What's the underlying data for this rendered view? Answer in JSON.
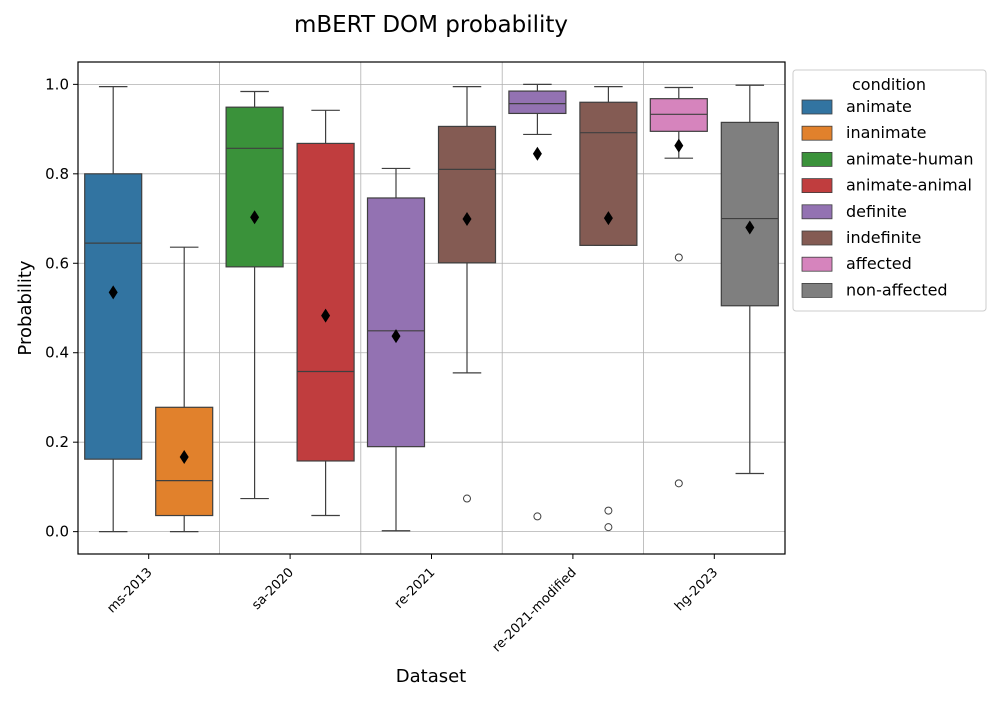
{
  "chart_data": {
    "type": "box",
    "title": "mBERT DOM probability",
    "xlabel": "Dataset",
    "ylabel": "Probability",
    "ylim": [
      -0.05,
      1.05
    ],
    "yticks": [
      "0.0",
      "0.2",
      "0.4",
      "0.6",
      "0.8",
      "1.0"
    ],
    "categories": [
      "ms-2013",
      "sa-2020",
      "re-2021",
      "re-2021-modified",
      "hg-2023"
    ],
    "grid": true,
    "legend": {
      "title": "condition",
      "position": "outside-right",
      "entries": [
        {
          "label": "animate",
          "color": "#3274a1"
        },
        {
          "label": "inanimate",
          "color": "#e1812c"
        },
        {
          "label": "animate-human",
          "color": "#3a923a"
        },
        {
          "label": "animate-animal",
          "color": "#c03d3e"
        },
        {
          "label": "definite",
          "color": "#9372b2"
        },
        {
          "label": "indefinite",
          "color": "#845b53"
        },
        {
          "label": "affected",
          "color": "#d684bd"
        },
        {
          "label": "non-affected",
          "color": "#7f7f7f"
        }
      ]
    },
    "boxes": [
      {
        "category": "ms-2013",
        "condition": "animate",
        "color": "#3274a1",
        "min": 0.0,
        "q1": 0.162,
        "median": 0.645,
        "q3": 0.8,
        "max": 0.995,
        "mean": 0.535,
        "outliers": []
      },
      {
        "category": "ms-2013",
        "condition": "inanimate",
        "color": "#e1812c",
        "min": 0.0,
        "q1": 0.036,
        "median": 0.114,
        "q3": 0.278,
        "max": 0.636,
        "mean": 0.167,
        "outliers": []
      },
      {
        "category": "sa-2020",
        "condition": "animate-human",
        "color": "#3a923a",
        "min": 0.074,
        "q1": 0.592,
        "median": 0.857,
        "q3": 0.949,
        "max": 0.984,
        "mean": 0.703,
        "outliers": []
      },
      {
        "category": "sa-2020",
        "condition": "animate-animal",
        "color": "#c03d3e",
        "min": 0.036,
        "q1": 0.158,
        "median": 0.358,
        "q3": 0.868,
        "max": 0.942,
        "mean": 0.483,
        "outliers": []
      },
      {
        "category": "re-2021",
        "condition": "definite",
        "color": "#9372b2",
        "min": 0.002,
        "q1": 0.19,
        "median": 0.449,
        "q3": 0.746,
        "max": 0.812,
        "mean": 0.437,
        "outliers": []
      },
      {
        "category": "re-2021",
        "condition": "indefinite",
        "color": "#845b53",
        "min": 0.355,
        "q1": 0.601,
        "median": 0.81,
        "q3": 0.906,
        "max": 0.995,
        "mean": 0.699,
        "outliers": [
          0.074
        ]
      },
      {
        "category": "re-2021-modified",
        "condition": "definite",
        "color": "#9372b2",
        "min": 0.888,
        "q1": 0.935,
        "median": 0.957,
        "q3": 0.985,
        "max": 1.0,
        "mean": 0.845,
        "outliers": [
          0.034
        ]
      },
      {
        "category": "re-2021-modified",
        "condition": "indefinite",
        "color": "#845b53",
        "min": 0.64,
        "q1": 0.64,
        "median": 0.892,
        "q3": 0.96,
        "max": 0.995,
        "mean": 0.701,
        "outliers": [
          0.047,
          0.01
        ]
      },
      {
        "category": "hg-2023",
        "condition": "affected",
        "color": "#d684bd",
        "min": 0.835,
        "q1": 0.895,
        "median": 0.933,
        "q3": 0.968,
        "max": 0.993,
        "mean": 0.863,
        "outliers": [
          0.613,
          0.108
        ]
      },
      {
        "category": "hg-2023",
        "condition": "non-affected",
        "color": "#7f7f7f",
        "min": 0.13,
        "q1": 0.505,
        "median": 0.7,
        "q3": 0.915,
        "max": 0.998,
        "mean": 0.68,
        "outliers": []
      }
    ]
  }
}
